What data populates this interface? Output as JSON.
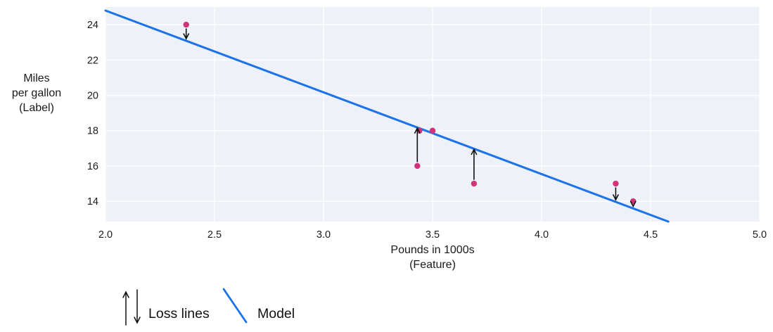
{
  "figure": {
    "background": "#ffffff",
    "plot_background": "#eef1f8",
    "grid_color": "#fcfdfe",
    "text_color": "#1a1a1a",
    "arrow_color": "#111111"
  },
  "chart_data": {
    "type": "scatter",
    "title": "",
    "xlabel_line1": "Pounds in 1000s",
    "xlabel_line2": "(Feature)",
    "ylabel_lines": [
      "Miles",
      "per gallon",
      "(Label)"
    ],
    "xlim": [
      2.0,
      5.0
    ],
    "ylim": [
      12.85,
      25.0
    ],
    "x_ticks": [
      2.0,
      2.5,
      3.0,
      3.5,
      4.0,
      4.5,
      5.0
    ],
    "x_tick_labels": [
      "2.0",
      "2.5",
      "3.0",
      "3.5",
      "4.0",
      "4.5",
      "5.0"
    ],
    "y_ticks": [
      14,
      16,
      18,
      20,
      22,
      24
    ],
    "y_tick_labels": [
      "14",
      "16",
      "18",
      "20",
      "22",
      "24"
    ],
    "grid": true,
    "point_color": "#d3327b",
    "points": [
      {
        "x": 2.37,
        "y": 24,
        "loss_line": true
      },
      {
        "x": 3.43,
        "y": 16,
        "loss_line": true
      },
      {
        "x": 3.44,
        "y": 18,
        "loss_line": false
      },
      {
        "x": 3.5,
        "y": 18,
        "loss_line": false
      },
      {
        "x": 3.69,
        "y": 15,
        "loss_line": true
      },
      {
        "x": 4.34,
        "y": 15,
        "loss_line": true
      },
      {
        "x": 4.42,
        "y": 14,
        "loss_line": true
      }
    ],
    "model": {
      "slope": -4.63,
      "intercept": 34.06,
      "color": "#1a73e8"
    },
    "legend": {
      "loss_lines_label": "Loss lines",
      "model_label": "Model"
    }
  }
}
